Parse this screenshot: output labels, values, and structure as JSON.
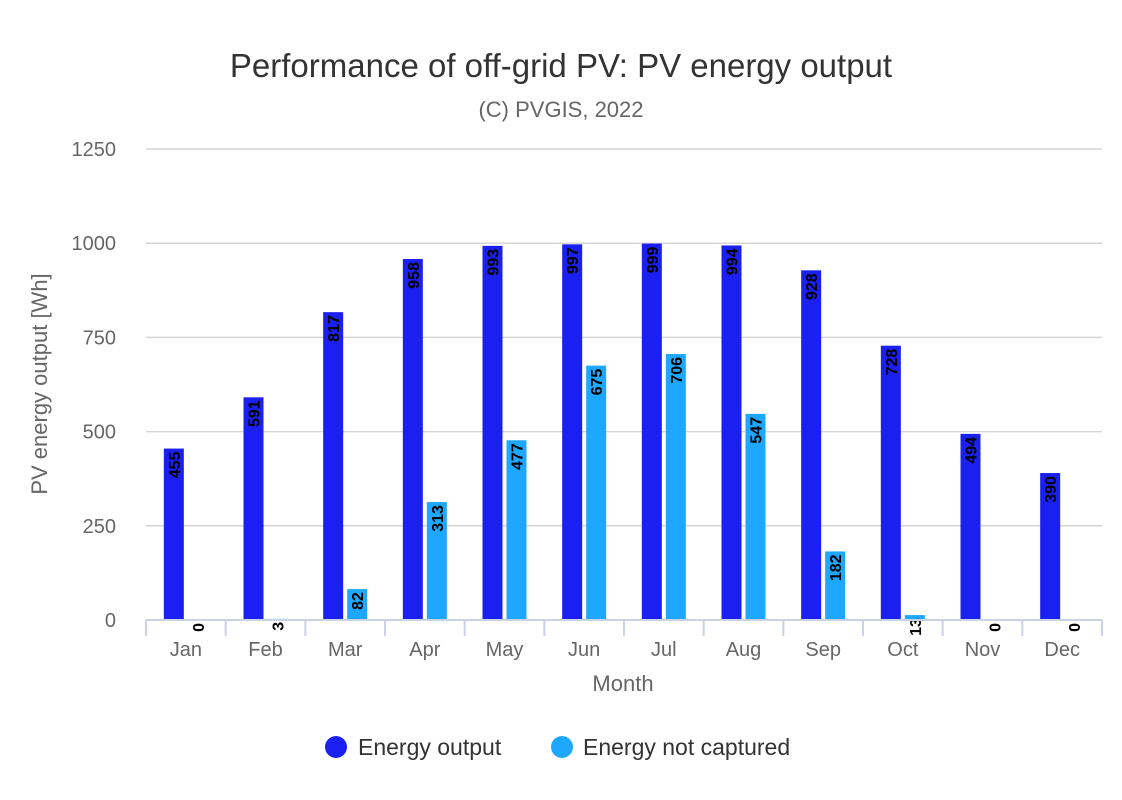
{
  "chart_data": {
    "type": "bar",
    "title": "Performance of off-grid PV: PV energy output",
    "subtitle": "(C) PVGIS, 2022",
    "xlabel": "Month",
    "ylabel": "PV energy output [Wh]",
    "categories": [
      "Jan",
      "Feb",
      "Mar",
      "Apr",
      "May",
      "Jun",
      "Jul",
      "Aug",
      "Sep",
      "Oct",
      "Nov",
      "Dec"
    ],
    "series": [
      {
        "name": "Energy output",
        "color": "#1a20f0",
        "values": [
          455,
          591,
          817,
          958,
          993,
          997,
          999,
          994,
          928,
          728,
          494,
          390
        ]
      },
      {
        "name": "Energy not captured",
        "color": "#1ea7ff",
        "values": [
          0,
          3,
          82,
          313,
          477,
          675,
          706,
          547,
          182,
          13,
          0,
          0
        ]
      }
    ],
    "ylim": [
      0,
      1250
    ],
    "yticks": [
      0,
      250,
      500,
      750,
      1000,
      1250
    ],
    "grid": true,
    "legend_position": "bottom-center"
  }
}
